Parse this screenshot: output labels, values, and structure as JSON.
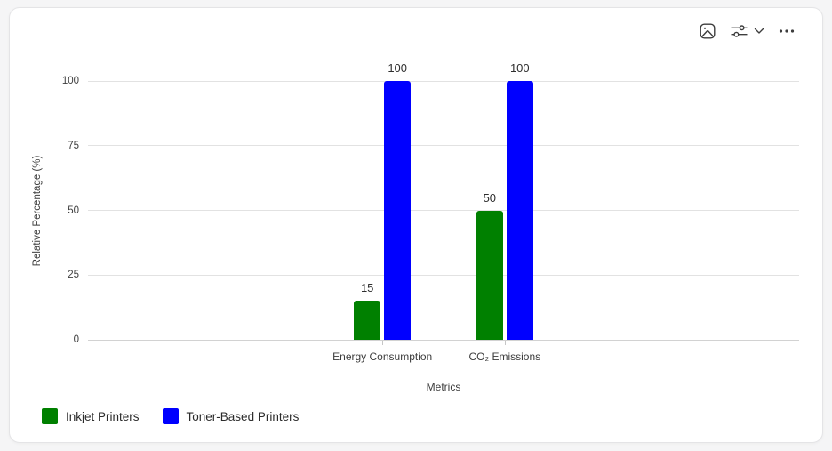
{
  "toolbar": {
    "icons": [
      {
        "name": "image-export-icon"
      },
      {
        "name": "filter-sliders-icon"
      },
      {
        "name": "chevron-down-icon"
      },
      {
        "name": "more-options-icon"
      }
    ]
  },
  "chart_data": {
    "type": "bar",
    "title": "",
    "categories": [
      "Energy Consumption",
      "CO₂ Emissions"
    ],
    "series": [
      {
        "name": "Inkjet Printers",
        "color": "#008000",
        "values": [
          15,
          50
        ]
      },
      {
        "name": "Toner-Based Printers",
        "color": "#0000ff",
        "values": [
          100,
          100
        ]
      }
    ],
    "xlabel": "Metrics",
    "ylabel": "Relative Percentage (%)",
    "ylim": [
      0,
      100
    ],
    "yticks": [
      0,
      25,
      50,
      75,
      100
    ],
    "grid": true,
    "bar_value_labels": true,
    "legend_position": "bottom-left"
  }
}
